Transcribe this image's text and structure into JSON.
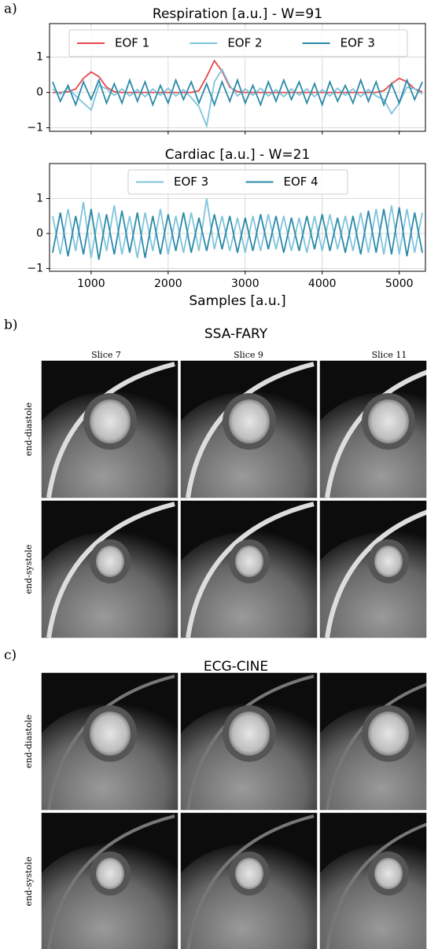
{
  "panels": {
    "a": "a)",
    "b": "b)",
    "c": "c)"
  },
  "chart_data": [
    {
      "type": "line",
      "title": "Respiration [a.u.] - W=91",
      "legend": "upper center",
      "grid": true,
      "x": [
        500,
        600,
        700,
        800,
        900,
        1000,
        1100,
        1200,
        1300,
        1400,
        1500,
        1600,
        1700,
        1800,
        1900,
        2000,
        2100,
        2200,
        2300,
        2400,
        2500,
        2600,
        2700,
        2800,
        2900,
        3000,
        3100,
        3200,
        3300,
        3400,
        3500,
        3600,
        3700,
        3800,
        3900,
        4000,
        4100,
        4200,
        4300,
        4400,
        4500,
        4600,
        4700,
        4800,
        4900,
        5000,
        5100,
        5200,
        5300
      ],
      "xlim": [
        460,
        5340
      ],
      "xticks": [
        1000,
        2000,
        3000,
        4000,
        5000
      ],
      "ylim": [
        -1.1,
        1.95
      ],
      "yticks": [
        {
          "value": -1,
          "label": "−1"
        },
        0,
        1
      ],
      "series": [
        {
          "name": "EOF 1",
          "color": "#e8474a",
          "values": [
            0,
            0,
            0.02,
            0.1,
            0.4,
            0.58,
            0.45,
            0.15,
            0.02,
            0,
            0,
            0,
            0,
            0,
            0,
            0,
            0,
            0,
            0,
            0.05,
            0.45,
            0.9,
            0.6,
            0.15,
            0.02,
            0,
            0,
            0,
            0,
            0,
            0,
            0,
            0,
            0,
            0,
            0,
            0,
            0,
            0,
            0,
            0,
            0,
            0,
            0.05,
            0.25,
            0.4,
            0.3,
            0.1,
            0.02
          ]
        },
        {
          "name": "EOF 2",
          "color": "#7fc4dc",
          "values": [
            0.1,
            -0.05,
            0.12,
            -0.1,
            -0.3,
            -0.5,
            0.2,
            0.1,
            -0.08,
            0.1,
            -0.1,
            0.08,
            -0.12,
            0.1,
            -0.08,
            0.12,
            -0.1,
            0.08,
            -0.15,
            -0.4,
            -0.95,
            0.3,
            0.65,
            0.2,
            -0.1,
            0.1,
            -0.08,
            0.12,
            -0.1,
            0.08,
            -0.12,
            0.1,
            -0.08,
            0.1,
            -0.12,
            0.08,
            -0.1,
            0.12,
            -0.08,
            0.1,
            -0.12,
            0.08,
            -0.1,
            -0.2,
            -0.6,
            -0.3,
            0.15,
            0.1,
            -0.05
          ]
        },
        {
          "name": "EOF 3",
          "color": "#2a8aa8",
          "values": [
            0.3,
            -0.25,
            0.2,
            -0.35,
            0.3,
            -0.2,
            0.35,
            -0.3,
            0.25,
            -0.3,
            0.35,
            -0.25,
            0.3,
            -0.35,
            0.2,
            -0.3,
            0.35,
            -0.2,
            0.3,
            -0.3,
            0.25,
            -0.35,
            0.3,
            -0.25,
            0.35,
            -0.3,
            0.2,
            -0.35,
            0.3,
            -0.25,
            0.35,
            -0.2,
            0.3,
            -0.3,
            0.25,
            -0.35,
            0.3,
            -0.25,
            0.2,
            -0.3,
            0.35,
            -0.25,
            0.3,
            -0.35,
            0.25,
            -0.3,
            0.35,
            -0.2,
            0.3
          ]
        }
      ]
    },
    {
      "type": "line",
      "title": "Cardiac [a.u.] - W=21",
      "x_label": "Samples [a.u.]",
      "legend": "upper center",
      "grid": true,
      "x": [
        500,
        600,
        700,
        800,
        900,
        1000,
        1100,
        1200,
        1300,
        1400,
        1500,
        1600,
        1700,
        1800,
        1900,
        2000,
        2100,
        2200,
        2300,
        2400,
        2500,
        2600,
        2700,
        2800,
        2900,
        3000,
        3100,
        3200,
        3300,
        3400,
        3500,
        3600,
        3700,
        3800,
        3900,
        4000,
        4100,
        4200,
        4300,
        4400,
        4500,
        4600,
        4700,
        4800,
        4900,
        5000,
        5100,
        5200,
        5300
      ],
      "xlim": [
        460,
        5340
      ],
      "xticks": [
        1000,
        2000,
        3000,
        4000,
        5000
      ],
      "ylim": [
        -1.08,
        2.0
      ],
      "yticks": [
        {
          "value": -1,
          "label": "−1"
        },
        0,
        1
      ],
      "series": [
        {
          "name": "EOF 3",
          "color": "#7fc4dc",
          "values": [
            0.5,
            -0.6,
            0.7,
            -0.5,
            0.9,
            -0.7,
            0.6,
            -0.5,
            0.8,
            -0.6,
            0.5,
            -0.7,
            0.6,
            -0.5,
            0.7,
            -0.6,
            0.5,
            -0.55,
            0.6,
            -0.5,
            1.0,
            -0.45,
            0.5,
            -0.5,
            0.45,
            -0.55,
            0.5,
            -0.5,
            0.55,
            -0.45,
            0.5,
            -0.5,
            0.45,
            -0.55,
            0.5,
            -0.5,
            0.55,
            -0.45,
            0.5,
            -0.5,
            0.6,
            -0.55,
            0.7,
            -0.6,
            0.8,
            -0.6,
            0.7,
            -0.55,
            0.6
          ]
        },
        {
          "name": "EOF 4",
          "color": "#2a8aa8",
          "values": [
            -0.55,
            0.6,
            -0.65,
            0.5,
            -0.6,
            0.7,
            -0.75,
            0.55,
            -0.6,
            0.65,
            -0.55,
            0.6,
            -0.7,
            0.5,
            -0.6,
            0.55,
            -0.5,
            0.6,
            -0.55,
            0.45,
            -0.5,
            0.55,
            -0.45,
            0.5,
            -0.55,
            0.45,
            -0.5,
            0.55,
            -0.45,
            0.5,
            -0.55,
            0.45,
            -0.5,
            0.5,
            -0.45,
            0.55,
            -0.5,
            0.45,
            -0.55,
            0.5,
            -0.6,
            0.65,
            -0.55,
            0.7,
            -0.6,
            0.75,
            -0.65,
            0.6,
            -0.55
          ]
        }
      ]
    }
  ],
  "ssa_fary": {
    "title": "SSA-FARY",
    "columns": [
      "Slice 7",
      "Slice 9",
      "Slice 11"
    ],
    "rows": [
      "end-diastole",
      "end-systole"
    ]
  },
  "ecg_cine": {
    "title": "ECG-CINE",
    "rows": [
      "end-diastole",
      "end-systole"
    ]
  }
}
